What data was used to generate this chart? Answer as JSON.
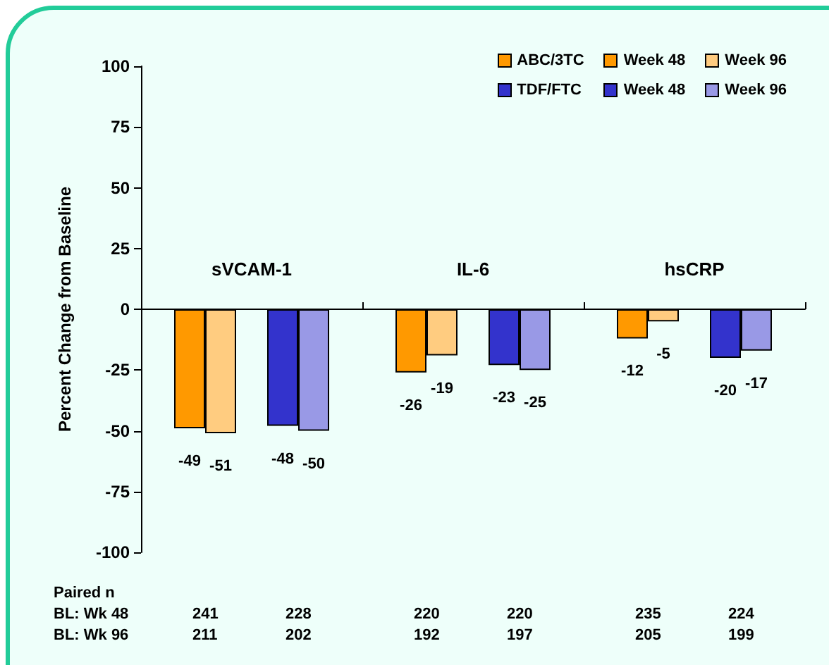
{
  "chart_data": {
    "type": "bar",
    "ylabel": "Percent Change from Baseline",
    "categories": [
      "sVCAM-1",
      "IL-6",
      "hsCRP"
    ],
    "series": [
      {
        "name": "Week 48",
        "color": "#ff9900",
        "values": [
          -49,
          -26,
          -12
        ]
      },
      {
        "name": "Week 96",
        "color": "#ffcc80",
        "values": [
          -51,
          -19,
          -5
        ]
      },
      {
        "name": "Week 48",
        "color": "#3333cc",
        "values": [
          -48,
          -23,
          -20
        ]
      },
      {
        "name": "Week 96",
        "color": "#9999e6",
        "values": [
          -50,
          -25,
          -17
        ]
      }
    ],
    "ylim": [
      -100,
      100
    ],
    "yticks": [
      -100,
      -75,
      -50,
      -25,
      0,
      25,
      50,
      75,
      100
    ],
    "data_labels": true,
    "grid": false,
    "legend": "top right",
    "annotations": [
      "ABC/3TC",
      "TDF/FTC",
      "Paired n",
      "BL: Wk 48",
      "241",
      "228",
      "220",
      "220",
      "235",
      "224",
      "BL: Wk 96",
      "211",
      "202",
      "192",
      "197",
      "205",
      "199"
    ]
  }
}
